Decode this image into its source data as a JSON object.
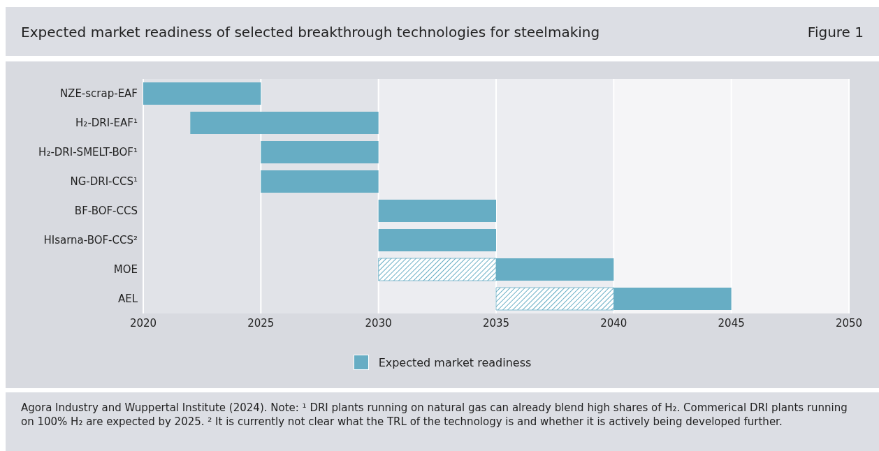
{
  "chart_data": {
    "type": "bar",
    "orientation": "horizontal",
    "title": "Expected market readiness of selected breakthrough technologies for steelmaking",
    "annotations": [
      "Figure 1",
      "Agora Industry and Wuppertal Institute (2024). Note: ¹ DRI plants running on natural gas can already blend high shares of H₂. Commerical DRI plants running on 100% H₂ are expected by 2025. ² It is currently not clear what the TRL of the technology is and whether it is actively being developed further."
    ],
    "categories": [
      "NZE-scrap-EAF",
      "H₂-DRI-EAF¹",
      "H₂-DRI-SMELT-BOF¹",
      "NG-DRI-CCS¹",
      "BF-BOF-CCS",
      "HIsarna-BOF-CCS²",
      "MOE",
      "AEL"
    ],
    "series": [
      {
        "name": "Expected market readiness",
        "color": "#67adc4",
        "values": [
          5,
          8,
          5,
          5,
          5,
          5,
          5,
          5
        ],
        "base": [
          2020,
          2022,
          2025,
          2025,
          2030,
          2030,
          2035,
          2040
        ]
      },
      {
        "color": "#67adc4",
        "values": [
          null,
          null,
          null,
          null,
          null,
          null,
          5,
          5
        ],
        "base": [
          null,
          null,
          null,
          null,
          null,
          null,
          2030,
          2035
        ]
      }
    ],
    "xlim": [
      2020,
      2050
    ],
    "xticks": [
      2020,
      2025,
      2030,
      2035,
      2040,
      2045,
      2050
    ],
    "bands": [
      {
        "axis": "x",
        "from": 2020,
        "to": 2030,
        "color": "#e1e3e8"
      },
      {
        "axis": "x",
        "from": 2030,
        "to": 2040,
        "color": "#ecedf1"
      },
      {
        "axis": "x",
        "from": 2040,
        "to": 2050,
        "color": "#f5f5f7"
      }
    ],
    "grid": "x",
    "legend": "bottom"
  }
}
